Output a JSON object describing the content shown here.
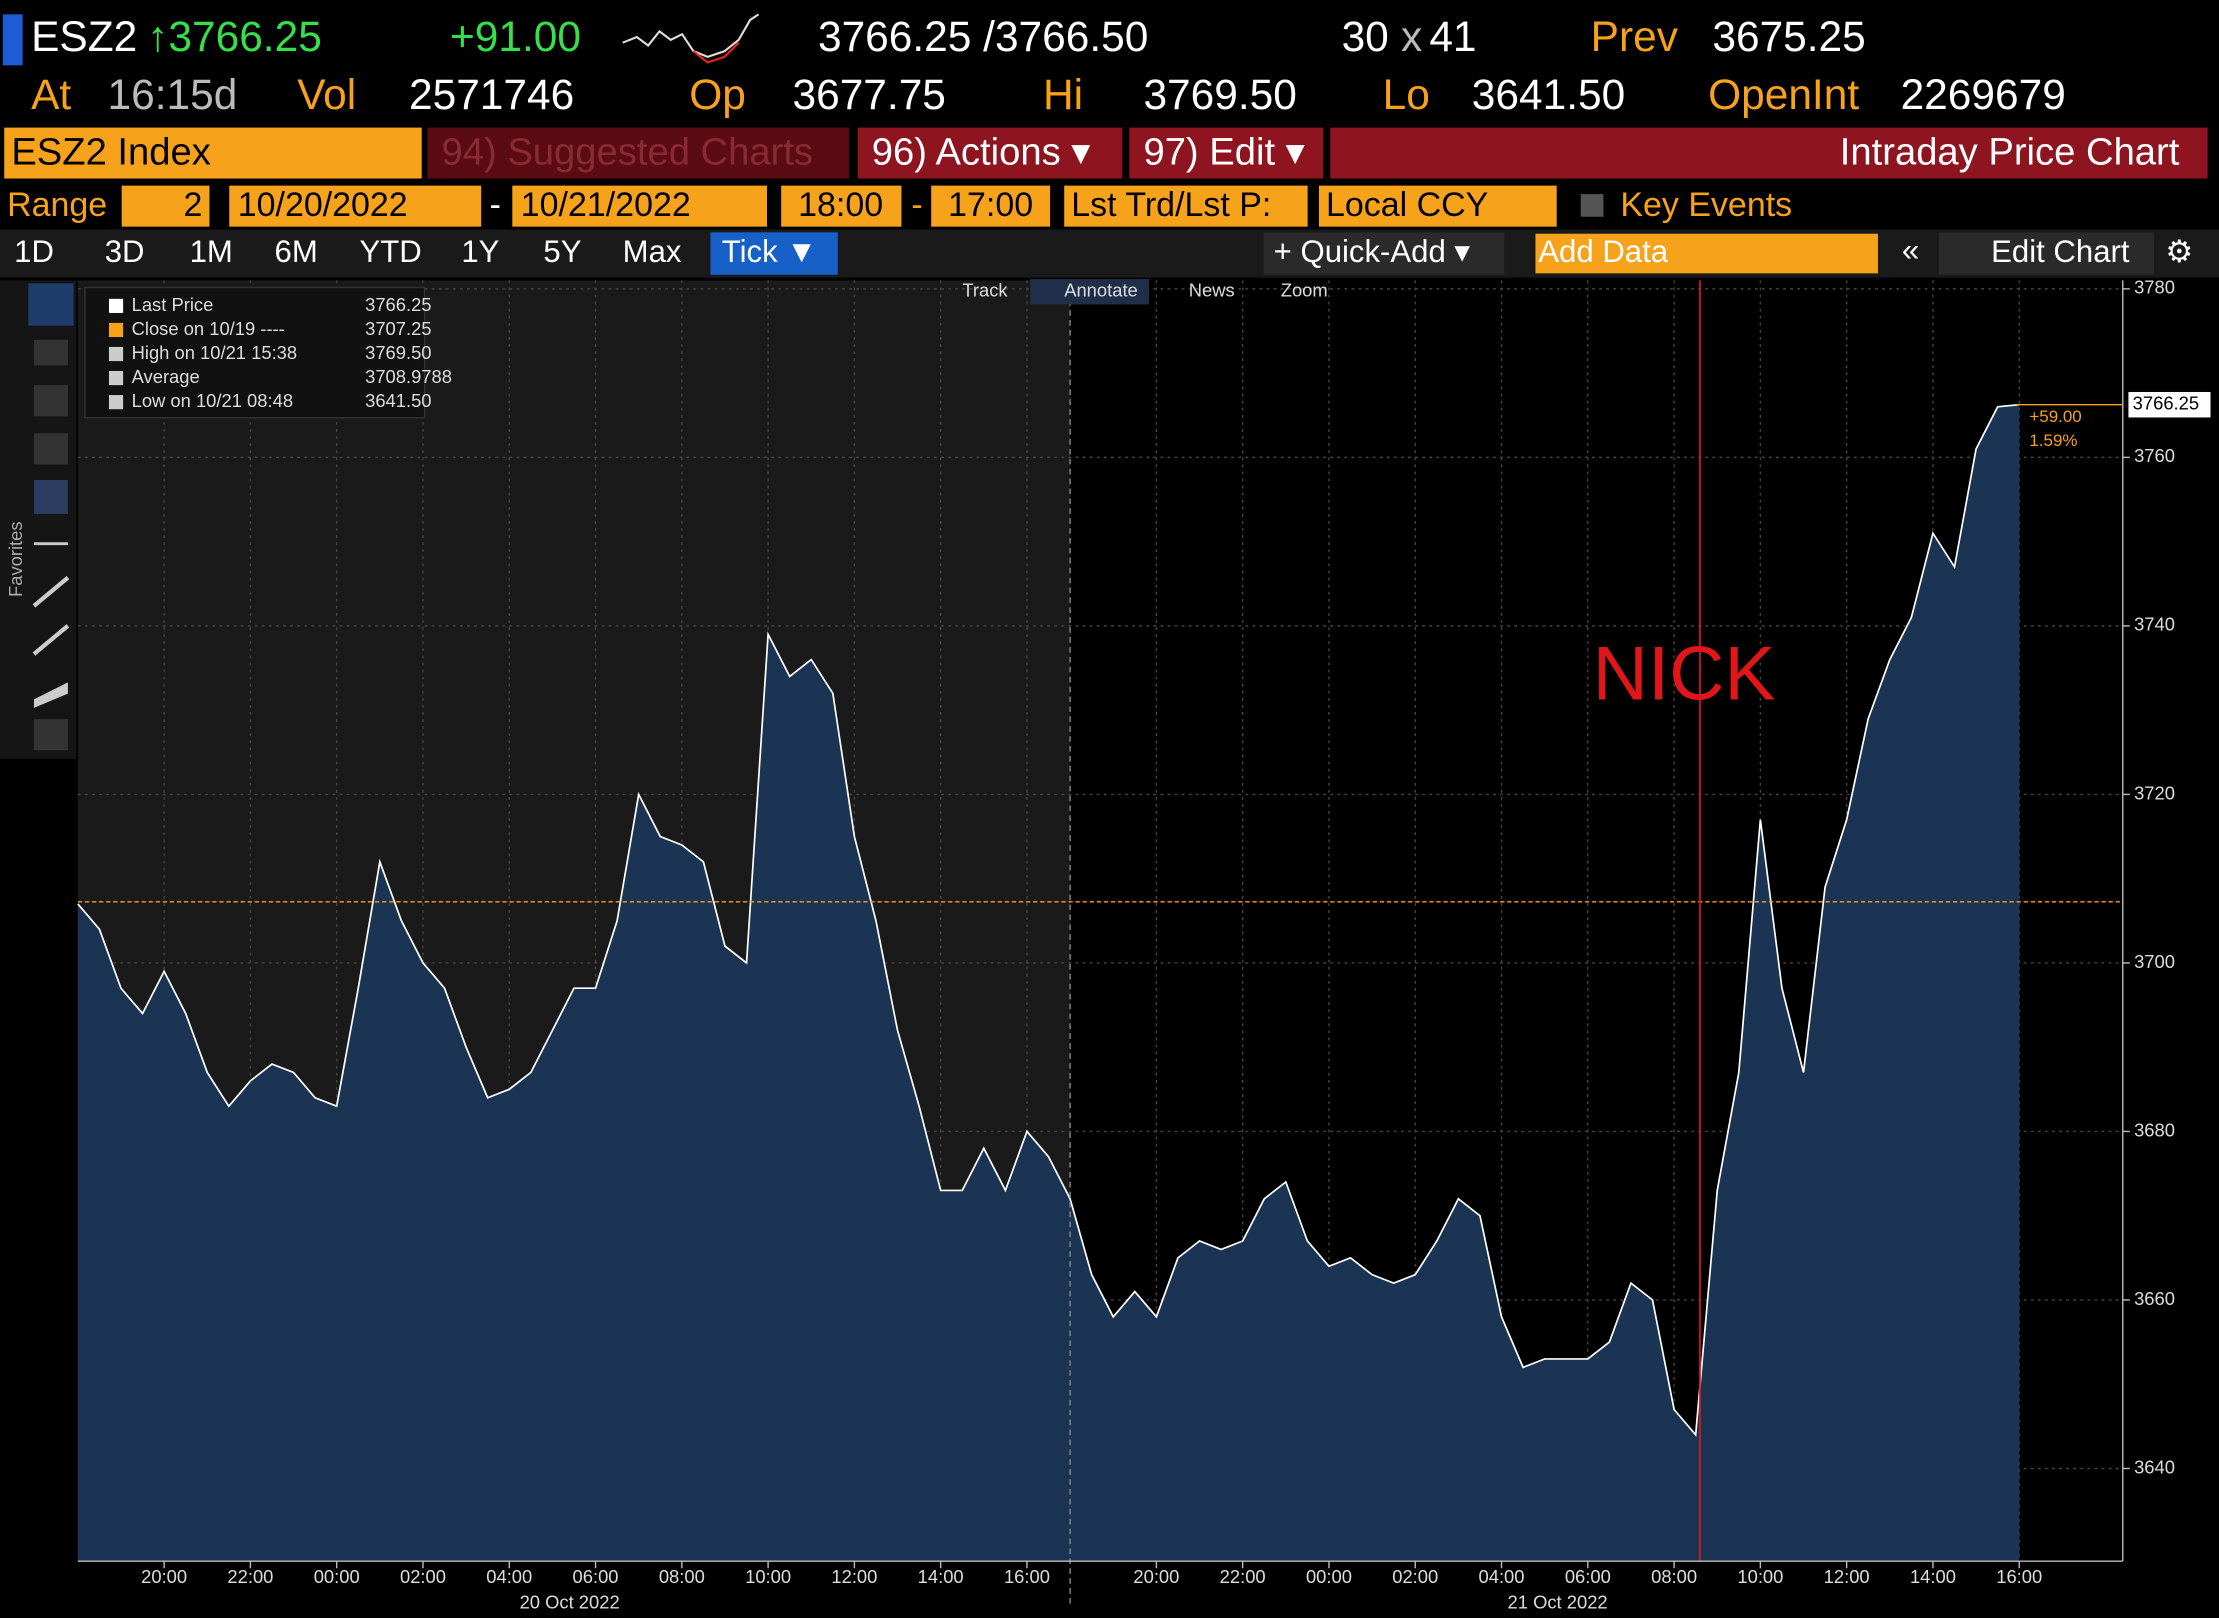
{
  "header": {
    "ticker": "ESZ2",
    "last": "↑3766.25",
    "change": "+91.00",
    "bid_ask": "3766.25 /3766.50",
    "size_bid": "30",
    "size_x": "x",
    "size_ask": "41",
    "prev_label": "Prev",
    "prev": "3675.25",
    "at_label": "At",
    "time": "16:15d",
    "vol_label": "Vol",
    "vol": "2571746",
    "op_label": "Op",
    "op": "3677.75",
    "hi_label": "Hi",
    "hi": "3769.50",
    "lo_label": "Lo",
    "lo": "3641.50",
    "oi_label": "OpenInt",
    "oi": "2269679"
  },
  "menu": {
    "security": "ESZ2 Index",
    "suggested": "94) Suggested Charts",
    "actions": "96) Actions ▾",
    "edit": "97) Edit ▾",
    "title": "Intraday Price Chart"
  },
  "range": {
    "label": "Range",
    "count": "2",
    "start_date": "10/20/2022",
    "dash": "-",
    "end_date": "10/21/2022",
    "start_time": "18:00",
    "end_time": "17:00",
    "field": "Lst Trd/Lst P:",
    "currency": "Local CCY",
    "key_events": "Key Events"
  },
  "periods": [
    "1D",
    "3D",
    "1M",
    "6M",
    "YTD",
    "1Y",
    "5Y",
    "Max",
    "Tick ▼"
  ],
  "toolbar": {
    "quick_add": "+ Quick-Add ▾",
    "add_data": "Add Data",
    "collapse": "«",
    "edit_chart": "Edit Chart",
    "settings": "⚙"
  },
  "sidebar": {
    "favorites": "Favorites"
  },
  "chart_tabs": [
    "Track",
    "Annotate",
    "News",
    "Zoom"
  ],
  "annotation": "NICK",
  "chart_data": {
    "type": "area",
    "legend": [
      {
        "name": "Last Price",
        "label": "3766.25",
        "color": "#ffffff"
      },
      {
        "name": "Close on 10/19 ----",
        "label": "3707.25",
        "color": "#f7a21b"
      },
      {
        "name": "High on 10/21 15:38",
        "label": "3769.50",
        "color": "#cccccc"
      },
      {
        "name": "Average",
        "label": "3708.9788",
        "color": "#cccccc"
      },
      {
        "name": "Low on 10/21 08:48",
        "label": "3641.50",
        "color": "#cccccc"
      }
    ],
    "series": [
      {
        "name": "Last Price",
        "color": "#ffffff",
        "fill": "#1c3454",
        "x": [
          0,
          0.5,
          1,
          1.5,
          2,
          2.5,
          3,
          3.5,
          4,
          4.5,
          5,
          5.5,
          6,
          6.5,
          7,
          7.5,
          8,
          8.5,
          9,
          9.5,
          10,
          10.5,
          11,
          11.5,
          12,
          12.5,
          13,
          13.5,
          14,
          14.5,
          15,
          15.5,
          16,
          16.5,
          17,
          17.5,
          18,
          18.5,
          19,
          19.5,
          20,
          20.5,
          21,
          21.5,
          22,
          22.5,
          23,
          23.5,
          24,
          24.5,
          25,
          25.5,
          26,
          26.5,
          27,
          27.5,
          28,
          28.5,
          29,
          29.5,
          30,
          30.5,
          31,
          31.5,
          32,
          32.5,
          33,
          33.5,
          34,
          34.5,
          35,
          35.5,
          36,
          36.5,
          37,
          37.5,
          38,
          38.5,
          39,
          39.5,
          40,
          40.5,
          41,
          41.5,
          42,
          42.5,
          43,
          43.5,
          44,
          44.5,
          45
        ],
        "values": [
          3707,
          3704,
          3697,
          3694,
          3699,
          3694,
          3687,
          3683,
          3686,
          3688,
          3687,
          3684,
          3683,
          3697,
          3712,
          3705,
          3700,
          3697,
          3690,
          3684,
          3685,
          3687,
          3692,
          3697,
          3697,
          3705,
          3720,
          3715,
          3714,
          3712,
          3702,
          3700,
          3739,
          3734,
          3736,
          3732,
          3715,
          3705,
          3692,
          3683,
          3673,
          3673,
          3678,
          3673,
          3680,
          3677,
          3672,
          3663,
          3658,
          3661,
          3658,
          3665,
          3667,
          3666,
          3667,
          3672,
          3674,
          3667,
          3664,
          3665,
          3663,
          3662,
          3663,
          3667,
          3672,
          3670,
          3658,
          3652,
          3653,
          3653,
          3653,
          3655,
          3662,
          3660,
          3647,
          3644,
          3673,
          3687,
          3717,
          3697,
          3687,
          3709,
          3717,
          3729,
          3736,
          3741,
          3751,
          3747,
          3761,
          3766,
          3766.25
        ]
      }
    ],
    "reference_line": {
      "value": 3707.25,
      "color": "#f7a21b"
    },
    "marker_line": {
      "x": 37.6,
      "color": "#e0161b"
    },
    "session_break": 23,
    "last_tag": "3766.25",
    "change_tag": "+59.00",
    "change_pct_tag": "1.59%",
    "xlim": [
      0,
      47.4
    ],
    "ylim": [
      3629,
      3781
    ],
    "yticks": [
      3640,
      3660,
      3680,
      3700,
      3720,
      3740,
      3760,
      3780
    ],
    "xticks": [
      {
        "value": 2,
        "label": "20:00"
      },
      {
        "value": 4,
        "label": "22:00"
      },
      {
        "value": 6,
        "label": "00:00"
      },
      {
        "value": 8,
        "label": "02:00"
      },
      {
        "value": 10,
        "label": "04:00"
      },
      {
        "value": 12,
        "label": "06:00"
      },
      {
        "value": 14,
        "label": "08:00"
      },
      {
        "value": 16,
        "label": "10:00"
      },
      {
        "value": 18,
        "label": "12:00"
      },
      {
        "value": 20,
        "label": "14:00"
      },
      {
        "value": 22,
        "label": "16:00"
      },
      {
        "value": 25,
        "label": "20:00"
      },
      {
        "value": 27,
        "label": "22:00"
      },
      {
        "value": 29,
        "label": "00:00"
      },
      {
        "value": 31,
        "label": "02:00"
      },
      {
        "value": 33,
        "label": "04:00"
      },
      {
        "value": 35,
        "label": "06:00"
      },
      {
        "value": 37,
        "label": "08:00"
      },
      {
        "value": 39,
        "label": "10:00"
      },
      {
        "value": 41,
        "label": "12:00"
      },
      {
        "value": 43,
        "label": "14:00"
      },
      {
        "value": 45,
        "label": "16:00"
      }
    ],
    "date_labels": [
      {
        "value": 11.4,
        "label": "20 Oct 2022"
      },
      {
        "value": 34.3,
        "label": "21 Oct 2022"
      }
    ],
    "grid": true
  }
}
